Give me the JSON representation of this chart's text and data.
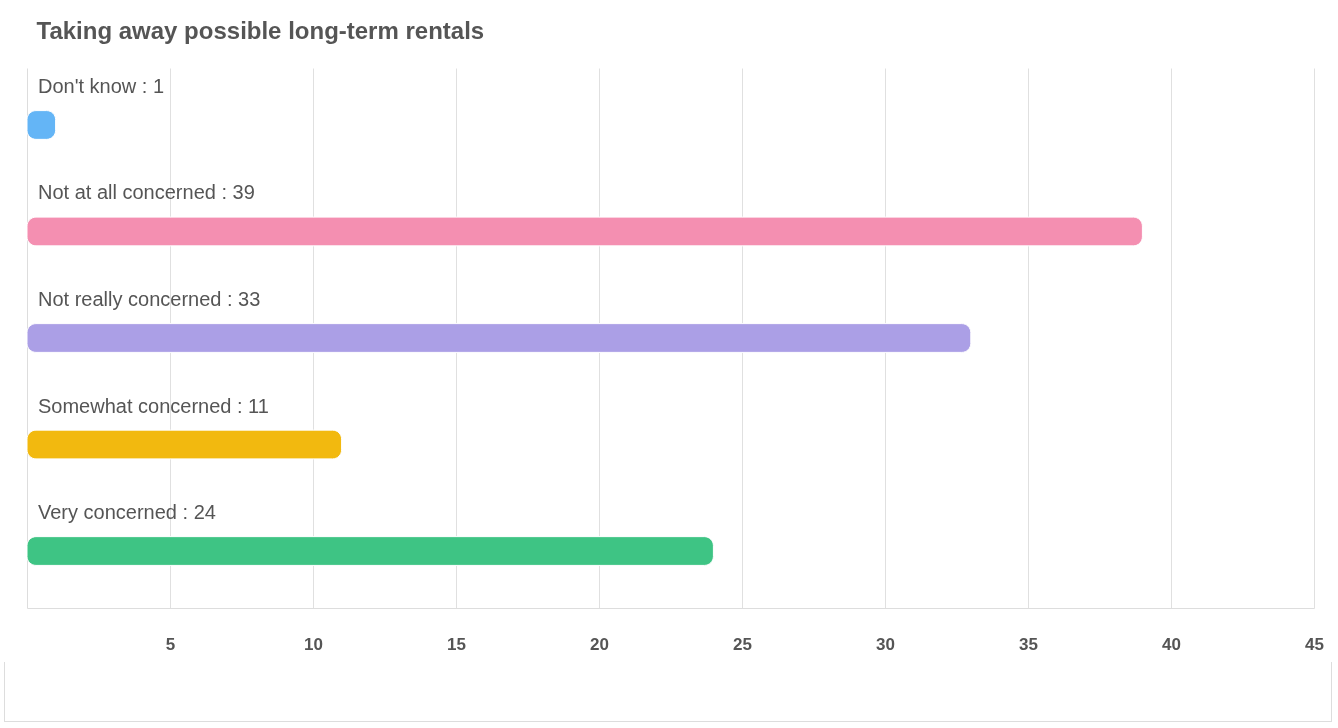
{
  "chart_data": {
    "type": "bar",
    "orientation": "horizontal",
    "title": "Taking away possible long-term rentals",
    "categories": [
      "Don't know : 1",
      "Not at all concerned : 39",
      "Not really concerned : 33",
      "Somewhat concerned : 11",
      "Very concerned : 24"
    ],
    "values": [
      1,
      39,
      33,
      11,
      24
    ],
    "colors": [
      "#64b5f6",
      "#f48fb1",
      "#ab9fe6",
      "#f2b90f",
      "#3ec484"
    ],
    "xlim": [
      0,
      45
    ],
    "xticks": [
      5,
      10,
      15,
      20,
      25,
      30,
      35,
      40,
      45
    ],
    "grid": "x"
  }
}
